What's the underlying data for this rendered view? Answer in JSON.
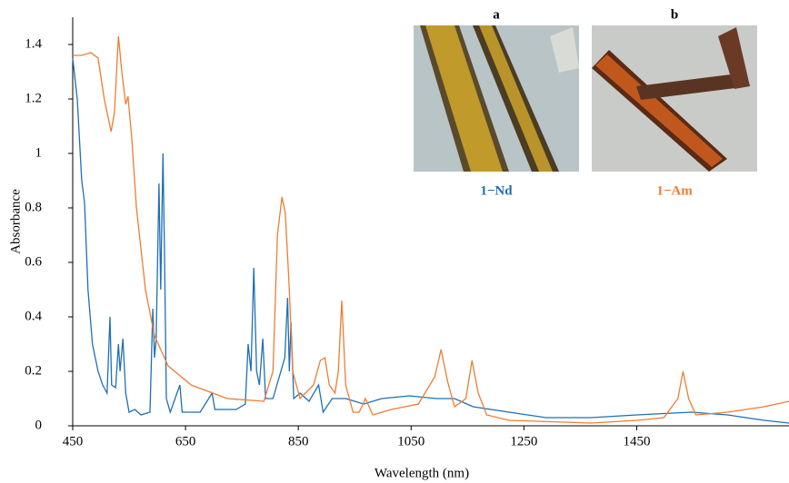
{
  "chart_data": {
    "type": "line",
    "xlabel": "Wavelength (nm)",
    "ylabel": "Absorbance",
    "xlim": [
      450,
      1720
    ],
    "xticks": [
      450,
      650,
      850,
      1050,
      1250,
      1450
    ],
    "ylim": [
      0,
      1.5
    ],
    "yticks": [
      0,
      0.2,
      0.4,
      0.6,
      0.8,
      1,
      1.2,
      1.4
    ],
    "series": [
      {
        "name": "1−Nd",
        "color": "#1f6fb4",
        "x": [
          450,
          458,
          466,
          471,
          477,
          485,
          495,
          503,
          511,
          516,
          519,
          526,
          531,
          534,
          539,
          544,
          550,
          560,
          571,
          587,
          592,
          595,
          598,
          603,
          606,
          610,
          613,
          616,
          623,
          640,
          644,
          676,
          697,
          702,
          740,
          756,
          761,
          766,
          771,
          776,
          781,
          787,
          792,
          805,
          826,
          831,
          834,
          837,
          842,
          853,
          869,
          886,
          894,
          910,
          934,
          966,
          998,
          1047,
          1095,
          1127,
          1160,
          1224,
          1289,
          1369,
          1450,
          1547,
          1611,
          1676,
          1720
        ],
        "values": [
          1.35,
          1.2,
          0.9,
          0.82,
          0.5,
          0.3,
          0.2,
          0.15,
          0.12,
          0.4,
          0.15,
          0.14,
          0.3,
          0.2,
          0.32,
          0.12,
          0.05,
          0.06,
          0.04,
          0.05,
          0.43,
          0.25,
          0.32,
          0.89,
          0.5,
          1.0,
          0.6,
          0.1,
          0.05,
          0.15,
          0.05,
          0.05,
          0.12,
          0.06,
          0.06,
          0.08,
          0.3,
          0.2,
          0.58,
          0.2,
          0.15,
          0.32,
          0.1,
          0.1,
          0.25,
          0.47,
          0.2,
          0.38,
          0.1,
          0.12,
          0.09,
          0.15,
          0.05,
          0.1,
          0.1,
          0.08,
          0.1,
          0.11,
          0.1,
          0.1,
          0.07,
          0.05,
          0.03,
          0.03,
          0.04,
          0.05,
          0.04,
          0.02,
          0.01
        ]
      },
      {
        "name": "1−Am",
        "color": "#ee7d31",
        "x": [
          450,
          466,
          482,
          495,
          506,
          518,
          524,
          531,
          537,
          544,
          548,
          555,
          563,
          579,
          595,
          619,
          660,
          724,
          789,
          805,
          813,
          821,
          827,
          834,
          840,
          853,
          877,
          889,
          897,
          905,
          915,
          921,
          927,
          934,
          947,
          958,
          969,
          982,
          1015,
          1063,
          1092,
          1103,
          1115,
          1127,
          1147,
          1158,
          1169,
          1184,
          1224,
          1369,
          1450,
          1498,
          1523,
          1532,
          1542,
          1555,
          1611,
          1676,
          1720
        ],
        "values": [
          1.36,
          1.36,
          1.37,
          1.35,
          1.2,
          1.08,
          1.15,
          1.43,
          1.3,
          1.18,
          1.21,
          1.05,
          0.8,
          0.5,
          0.33,
          0.22,
          0.15,
          0.1,
          0.09,
          0.2,
          0.7,
          0.84,
          0.78,
          0.5,
          0.2,
          0.1,
          0.15,
          0.24,
          0.25,
          0.15,
          0.12,
          0.2,
          0.46,
          0.15,
          0.05,
          0.05,
          0.1,
          0.04,
          0.06,
          0.08,
          0.18,
          0.28,
          0.16,
          0.07,
          0.1,
          0.24,
          0.12,
          0.04,
          0.02,
          0.01,
          0.02,
          0.03,
          0.1,
          0.2,
          0.1,
          0.04,
          0.05,
          0.07,
          0.09
        ]
      }
    ]
  },
  "insets": [
    {
      "label": "a"
    },
    {
      "label": "b"
    }
  ]
}
